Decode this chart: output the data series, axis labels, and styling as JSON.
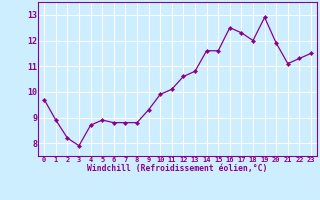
{
  "x": [
    0,
    1,
    2,
    3,
    4,
    5,
    6,
    7,
    8,
    9,
    10,
    11,
    12,
    13,
    14,
    15,
    16,
    17,
    18,
    19,
    20,
    21,
    22,
    23
  ],
  "y": [
    9.7,
    8.9,
    8.2,
    7.9,
    8.7,
    8.9,
    8.8,
    8.8,
    8.8,
    9.3,
    9.9,
    10.1,
    10.6,
    10.8,
    11.6,
    11.6,
    12.5,
    12.3,
    12.0,
    12.9,
    11.9,
    11.1,
    11.3,
    11.5
  ],
  "line_color": "#8B008B",
  "marker": "D",
  "marker_size": 2.2,
  "background_color": "#cceeff",
  "grid_color": "#ffffff",
  "xlabel": "Windchill (Refroidissement éolien,°C)",
  "xlabel_color": "#8B008B",
  "tick_color": "#8B008B",
  "ylim": [
    7.5,
    13.5
  ],
  "xlim": [
    -0.5,
    23.5
  ],
  "yticks": [
    8,
    9,
    10,
    11,
    12,
    13
  ],
  "xticks": [
    0,
    1,
    2,
    3,
    4,
    5,
    6,
    7,
    8,
    9,
    10,
    11,
    12,
    13,
    14,
    15,
    16,
    17,
    18,
    19,
    20,
    21,
    22,
    23
  ],
  "xtick_labels": [
    "0",
    "1",
    "2",
    "3",
    "4",
    "5",
    "6",
    "7",
    "8",
    "9",
    "10",
    "11",
    "12",
    "13",
    "14",
    "15",
    "16",
    "17",
    "18",
    "19",
    "20",
    "21",
    "22",
    "23"
  ]
}
